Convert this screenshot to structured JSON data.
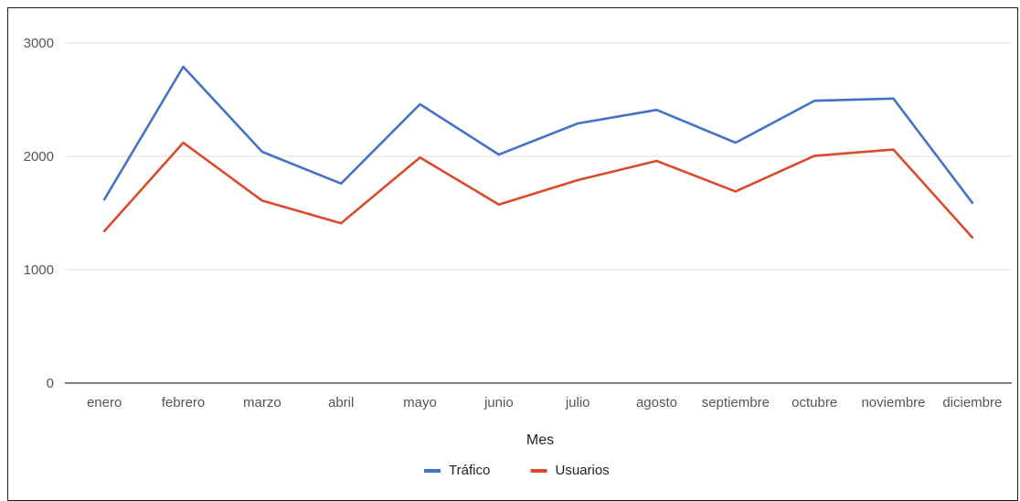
{
  "chart_data": {
    "type": "line",
    "title": "",
    "xlabel": "Mes",
    "ylabel": "",
    "ylim": [
      0,
      3000
    ],
    "yticks": [
      "0",
      "1000",
      "2000",
      "3000"
    ],
    "grid": true,
    "legend_position": "bottom",
    "categories": [
      "enero",
      "febrero",
      "marzo",
      "abril",
      "mayo",
      "junio",
      "julio",
      "agosto",
      "septiembre",
      "octubre",
      "noviembre",
      "diciembre"
    ],
    "series": [
      {
        "name": "Tráfico",
        "color": "#4472c4",
        "values": [
          1620,
          2790,
          2040,
          1760,
          2460,
          2015,
          2290,
          2410,
          2120,
          2490,
          2510,
          1590
        ]
      },
      {
        "name": "Usuarios",
        "color": "#db4a2b",
        "values": [
          1340,
          2120,
          1610,
          1410,
          1990,
          1575,
          1790,
          1960,
          1690,
          2005,
          2060,
          1285
        ]
      }
    ]
  }
}
